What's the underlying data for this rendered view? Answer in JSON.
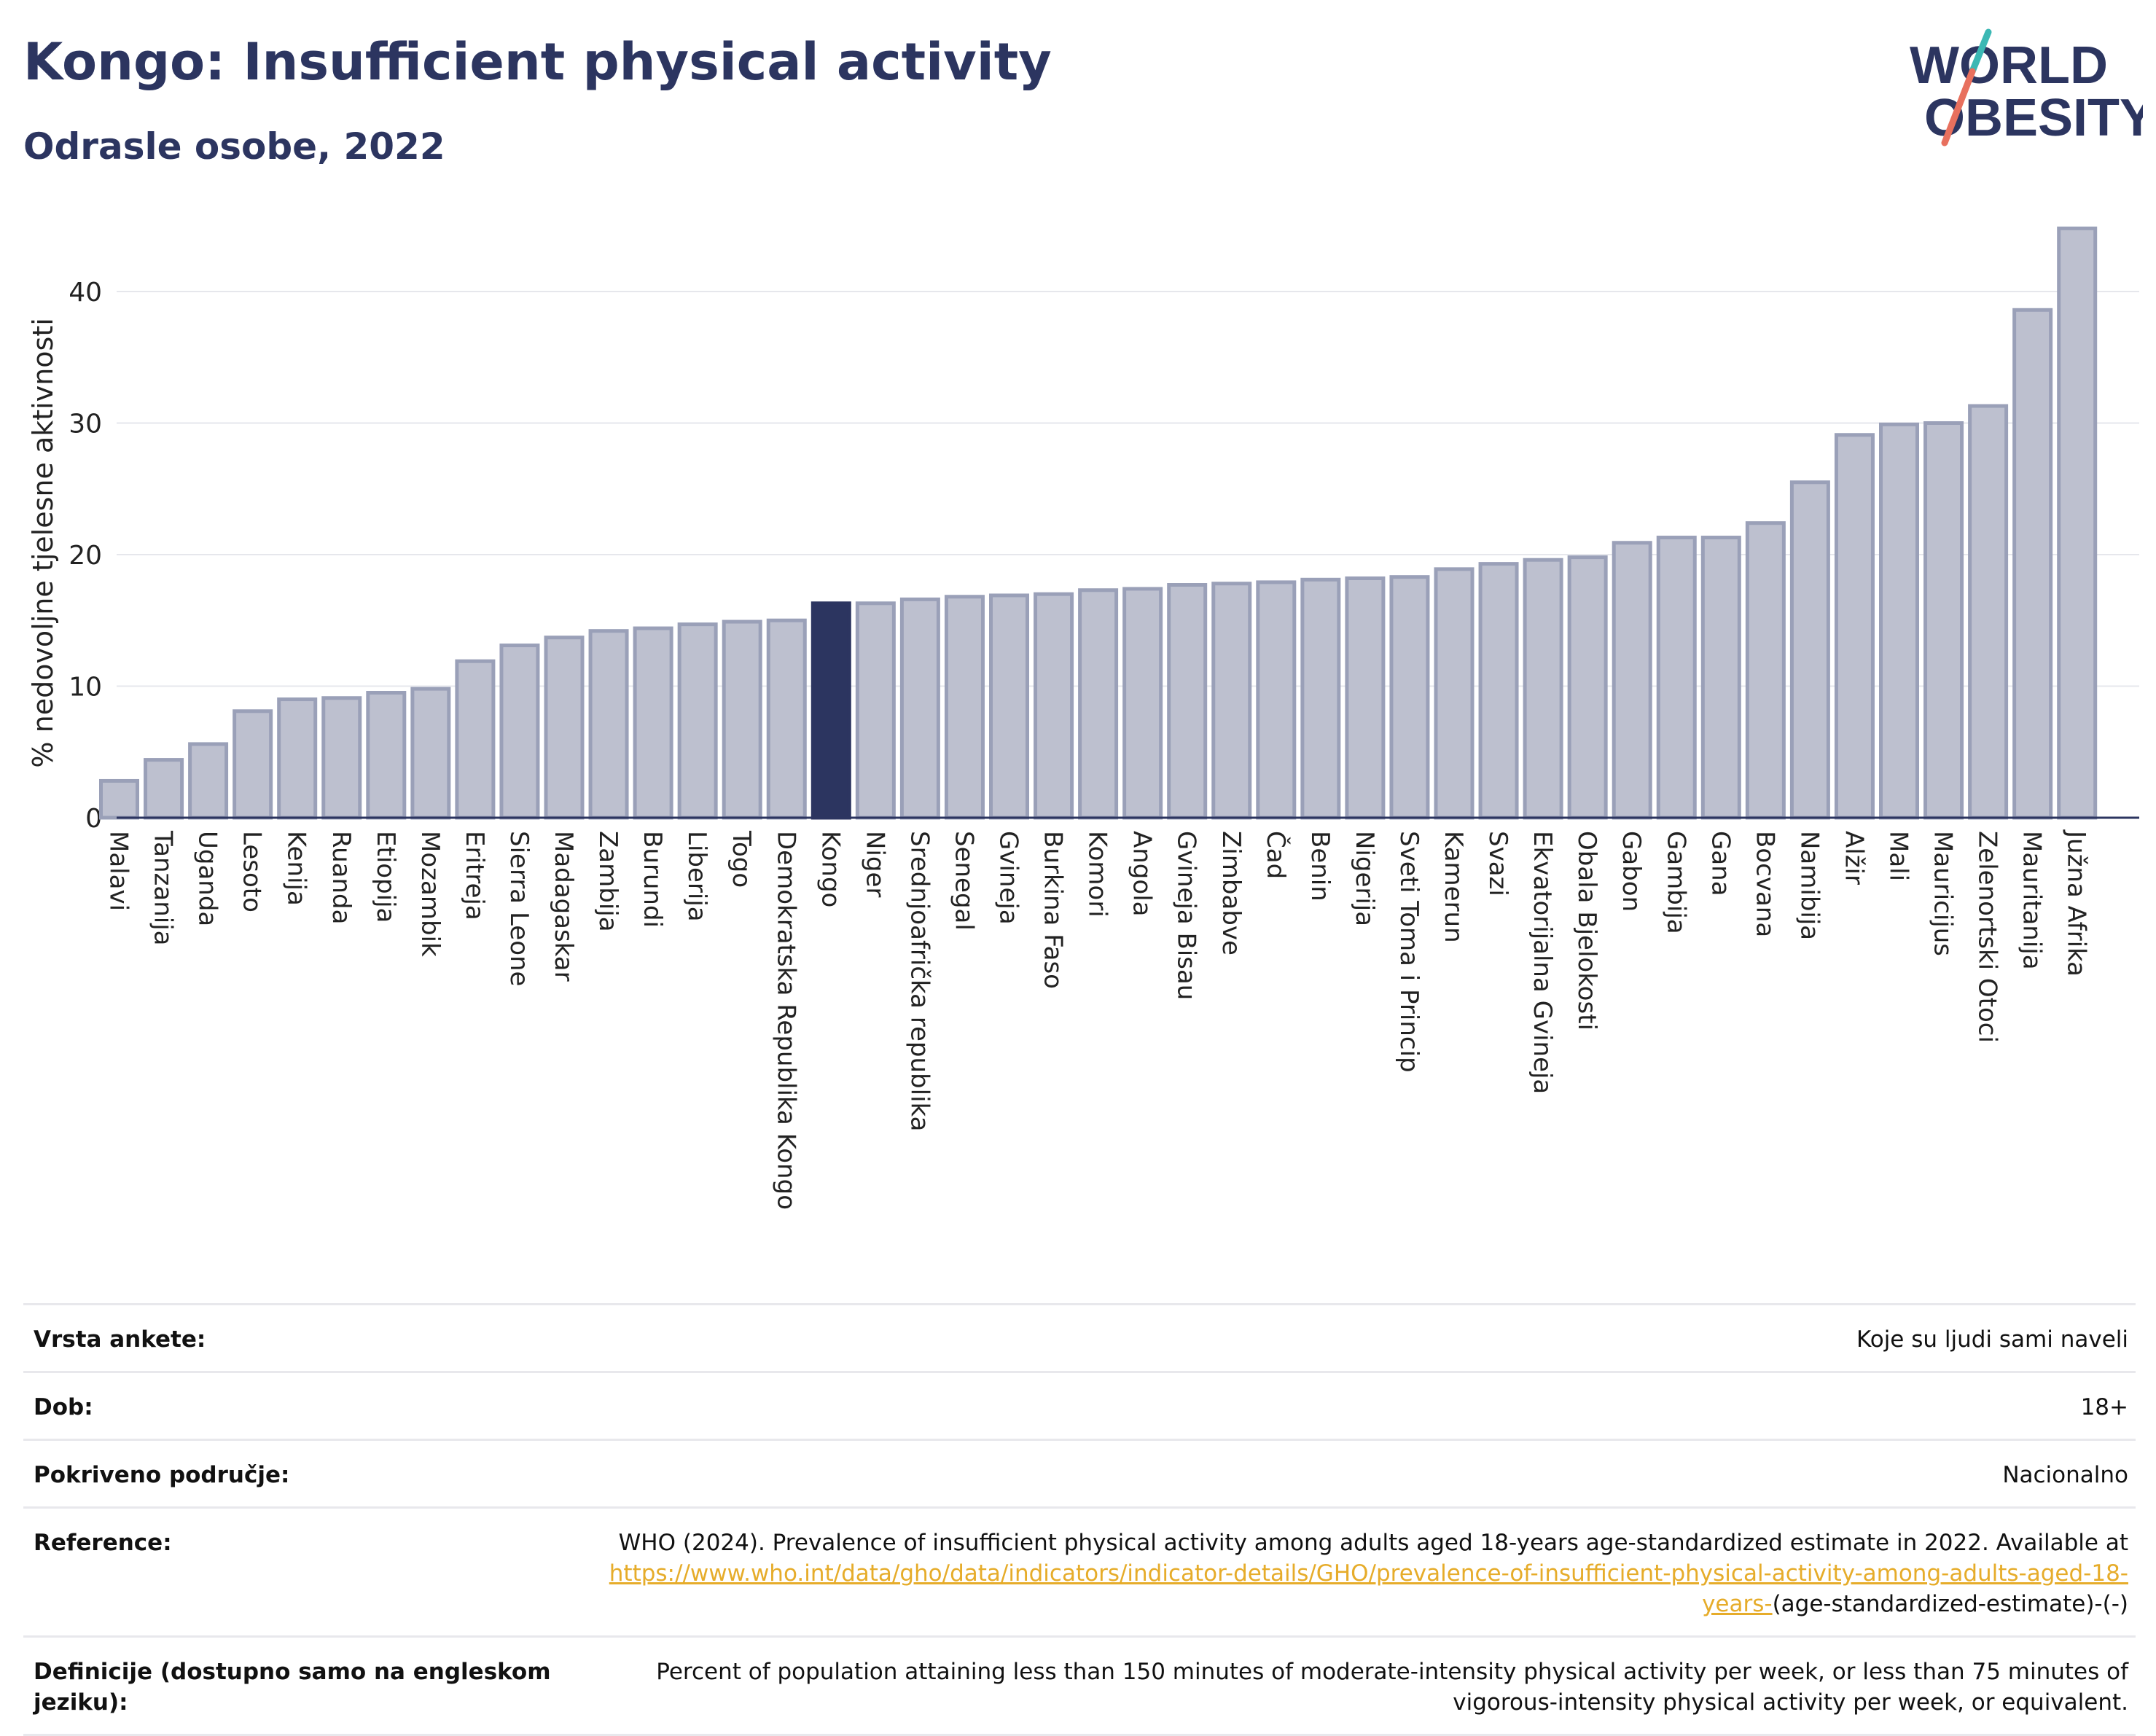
{
  "header": {
    "title": "Kongo: Insufficient physical activity",
    "subtitle": "Odrasle osobe, 2022",
    "logo_line1": "WORLD",
    "logo_line2": "OBESITY"
  },
  "colors": {
    "brand_navy": "#2c3560",
    "bar_fill": "#bdc0cf",
    "bar_stroke": "#9aa0b8",
    "highlight": "#2c3560",
    "link": "#e6ac2a",
    "logo_teal": "#3bb8b4",
    "logo_coral": "#e8705e"
  },
  "chart_data": {
    "type": "bar",
    "ylabel": "% nedovoljne tjelesne aktivnosti",
    "ylim": [
      0,
      45
    ],
    "yticks": [
      0,
      10,
      20,
      30,
      40
    ],
    "grid": true,
    "highlight": "Kongo",
    "categories": [
      "Malavi",
      "Tanzanija",
      "Uganda",
      "Lesoto",
      "Kenija",
      "Ruanda",
      "Etiopija",
      "Mozambik",
      "Eritreja",
      "Sierra Leone",
      "Madagaskar",
      "Zambija",
      "Burundi",
      "Liberija",
      "Togo",
      "Demokratska Republika Kongo",
      "Kongo",
      "Niger",
      "Srednjoafrička republika",
      "Senegal",
      "Gvineja",
      "Burkina Faso",
      "Komori",
      "Angola",
      "Gvineja Bisau",
      "Zimbabve",
      "Čad",
      "Benin",
      "Nigerija",
      "Sveti Toma i Princip",
      "Kamerun",
      "Svazi",
      "Ekvatorijalna Gvineja",
      "Obala Bjelokosti",
      "Gabon",
      "Gambija",
      "Gana",
      "Bocvana",
      "Namibija",
      "Alžir",
      "Mali",
      "Mauricijus",
      "Zelenortski Otoci",
      "Mauritanija",
      "Južna Afrika"
    ],
    "values": [
      2.8,
      4.4,
      5.6,
      8.1,
      9.0,
      9.1,
      9.5,
      9.8,
      11.9,
      13.1,
      13.7,
      14.2,
      14.4,
      14.7,
      14.9,
      15.0,
      16.3,
      16.3,
      16.6,
      16.8,
      16.9,
      17.0,
      17.3,
      17.4,
      17.7,
      17.8,
      17.9,
      18.1,
      18.2,
      18.3,
      18.9,
      19.3,
      19.6,
      19.8,
      20.9,
      21.3,
      21.3,
      22.4,
      25.5,
      29.1,
      29.9,
      30.0,
      31.3,
      38.6,
      44.8
    ]
  },
  "meta": {
    "survey_label": "Vrsta ankete:",
    "survey_value": "Koje su ljudi sami naveli",
    "age_label": "Dob:",
    "age_value": "18+",
    "coverage_label": "Pokriveno područje:",
    "coverage_value": "Nacionalno",
    "ref_label": "Reference:",
    "ref_text": "WHO (2024). Prevalence of insufficient physical activity among adults aged 18-years age-standardized estimate in 2022. Available at",
    "ref_link": "https://www.who.int/data/gho/data/indicators/indicator-details/GHO/prevalence-of-insufficient-physical-activity-among-adults-aged-18-years-",
    "ref_tail": "(age-standardized-estimate)-(-)",
    "def_label": "Definicije (dostupno samo na engleskom jeziku):",
    "def_value": "Percent of population attaining less than 150 minutes of moderate-intensity physical activity per week, or less than 75 minutes of vigorous-intensity physical activity per week, or equivalent."
  }
}
